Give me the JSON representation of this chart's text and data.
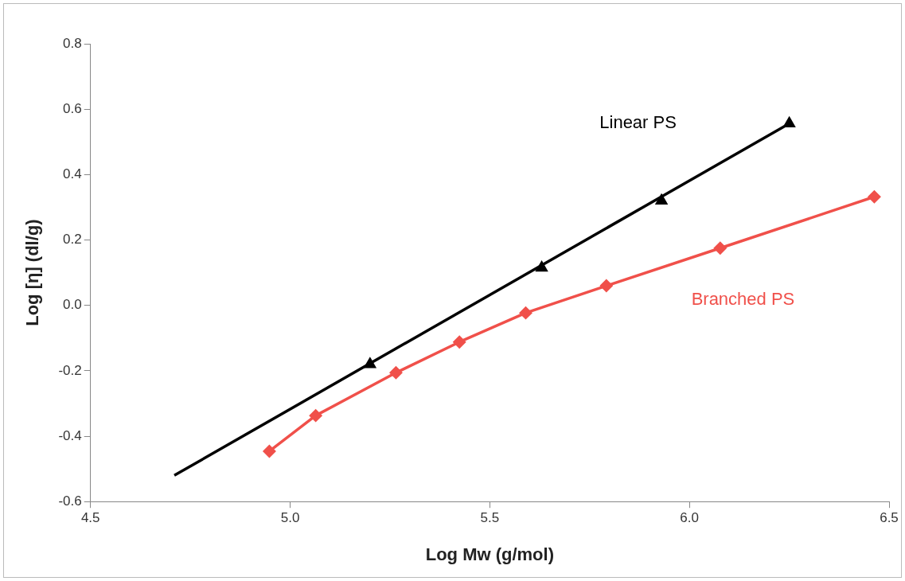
{
  "chart_data": {
    "type": "line",
    "xlabel": "Log Mw (g/mol)",
    "ylabel": "Log [η] (dl/g)",
    "xlim": [
      4.5,
      6.5
    ],
    "ylim": [
      -0.6,
      0.8
    ],
    "xticks": [
      {
        "value": 4.5,
        "label": "4.5"
      },
      {
        "value": 5,
        "label": "5.0"
      },
      {
        "value": 5.5,
        "label": "5.5"
      },
      {
        "value": 6,
        "label": "6.0"
      },
      {
        "value": 6.5,
        "label": "6.5"
      }
    ],
    "yticks": [
      {
        "value": -0.6,
        "label": "-0.6"
      },
      {
        "value": -0.4,
        "label": "-0.4"
      },
      {
        "value": -0.2,
        "label": "-0.2"
      },
      {
        "value": 0,
        "label": "0.0"
      },
      {
        "value": 0.2,
        "label": "0.2"
      },
      {
        "value": 0.4,
        "label": "0.4"
      },
      {
        "value": 0.6,
        "label": "0.6"
      },
      {
        "value": 0.8,
        "label": "0.8"
      }
    ],
    "grid": false,
    "legend": false,
    "series": [
      {
        "type": "line",
        "marker": "none",
        "color": "#000000",
        "x": [
          4.71,
          6.25
        ],
        "values": [
          -0.52,
          0.556
        ]
      },
      {
        "name": "Linear PS",
        "type": "scatter",
        "marker": "triangle",
        "color": "#000000",
        "x": [
          5.2,
          5.63,
          5.93,
          6.25
        ],
        "values": [
          -0.18,
          0.115,
          0.32,
          0.556
        ]
      },
      {
        "name": "Branched PS",
        "marker": "diamond",
        "color": "#f0504a",
        "x": [
          4.948,
          5.064,
          5.265,
          5.424,
          5.59,
          5.792,
          6.077,
          6.463
        ],
        "values": [
          -0.446,
          -0.337,
          -0.206,
          -0.112,
          -0.023,
          0.06,
          0.175,
          0.332
        ]
      }
    ]
  }
}
